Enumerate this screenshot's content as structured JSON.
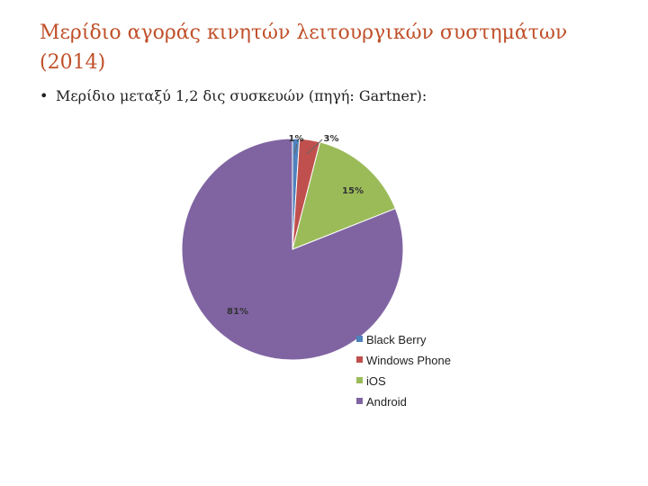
{
  "slide": {
    "title": "Μερίδιο αγοράς κινητών λειτουργικών συστημάτων (2014)",
    "bullet_marker": "•",
    "bullet_text": "Μερίδιο μεταξύ 1,2 δις συσκευών (πηγή: Gartner):"
  },
  "chart_data": {
    "type": "pie",
    "title": "",
    "slices": [
      {
        "name": "Black Berry",
        "value": 1,
        "label": "1%",
        "color": "#4f81bd"
      },
      {
        "name": "Windows Phone",
        "value": 3,
        "label": "3%",
        "color": "#c0504d"
      },
      {
        "name": "iOS",
        "value": 15,
        "label": "15%",
        "color": "#9bbb59"
      },
      {
        "name": "Android",
        "value": 81,
        "label": "81%",
        "color": "#8064a2"
      }
    ],
    "legend_position": "bottom-right"
  }
}
